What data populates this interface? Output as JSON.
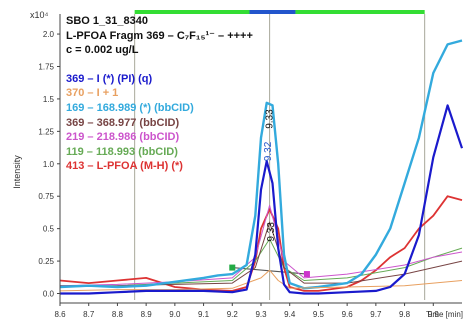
{
  "chart_data": {
    "type": "line",
    "header": [
      "SBO 1_31_8340",
      "L-PFOA Fragm 369 – C₇F₁₅¹⁻ – ++++",
      "c = 0.002 ug/L"
    ],
    "y_exponent": "x10⁴",
    "ylabel": "Intensity",
    "xlabel": "Time [min]",
    "xlim": [
      8.6,
      10.0
    ],
    "ylim": [
      -0.05,
      2.17
    ],
    "x_ticks": [
      "8.6",
      "8.7",
      "8.8",
      "8.9",
      "9.0",
      "9.1",
      "9.2",
      "9.3",
      "9.4",
      "9.5",
      "9.6",
      "9.7",
      "9.8",
      "9.9",
      "Time [min]"
    ],
    "y_ticks": [
      "0.0",
      "0.25",
      "0.5",
      "0.75",
      "1.0",
      "1.25",
      "1.5",
      "1.75",
      "2.0"
    ],
    "y_tick_values": [
      0,
      0.25,
      0.5,
      0.75,
      1.0,
      1.25,
      1.5,
      1.75,
      2.0
    ],
    "vertical_lines": [
      8.86,
      9.33,
      9.87
    ],
    "time_bar": [
      {
        "from": 8.86,
        "to": 9.26,
        "color": "#33dd33"
      },
      {
        "from": 9.26,
        "to": 9.42,
        "color": "#2255cc"
      },
      {
        "from": 9.42,
        "to": 9.87,
        "color": "#33dd33"
      }
    ],
    "peak_labels": [
      {
        "text": "9.33",
        "x": 9.33,
        "y": 1.27,
        "color": "#111111"
      },
      {
        "text": "9.32",
        "x": 9.325,
        "y": 1.02,
        "color": "#2255cc"
      },
      {
        "text": "9.33",
        "x": 9.335,
        "y": 0.4,
        "color": "#111111"
      }
    ],
    "integration_baseline": {
      "x": [
        9.2,
        9.46
      ],
      "y": [
        0.2,
        0.15
      ]
    },
    "series": [
      {
        "name": "369 – I (*) (PI) (q)",
        "color": "#1a1acc",
        "width": 2.2,
        "x": [
          8.6,
          8.7,
          8.8,
          8.9,
          9.0,
          9.1,
          9.2,
          9.25,
          9.28,
          9.3,
          9.32,
          9.34,
          9.36,
          9.38,
          9.4,
          9.45,
          9.5,
          9.6,
          9.7,
          9.75,
          9.8,
          9.85,
          9.9,
          9.95,
          10.0
        ],
        "y": [
          0.0,
          0.0,
          0.01,
          0.02,
          0.02,
          0.02,
          0.01,
          0.03,
          0.3,
          0.8,
          1.02,
          0.85,
          0.35,
          0.07,
          0.01,
          0.0,
          0.0,
          0.01,
          0.02,
          0.05,
          0.15,
          0.45,
          1.05,
          1.45,
          1.12
        ]
      },
      {
        "name": "370 – I + 1",
        "color": "#e8a060",
        "width": 1.0,
        "x": [
          8.6,
          8.8,
          9.0,
          9.2,
          9.3,
          9.33,
          9.36,
          9.4,
          9.6,
          9.8,
          10.0
        ],
        "y": [
          0.02,
          0.03,
          0.03,
          0.04,
          0.12,
          0.18,
          0.1,
          0.04,
          0.05,
          0.06,
          0.1
        ]
      },
      {
        "name": "169 – 168.989 (*) (bbCID)",
        "color": "#33aadd",
        "width": 2.4,
        "x": [
          8.6,
          8.7,
          8.8,
          8.9,
          9.0,
          9.1,
          9.15,
          9.2,
          9.25,
          9.28,
          9.3,
          9.32,
          9.34,
          9.36,
          9.38,
          9.4,
          9.45,
          9.5,
          9.6,
          9.65,
          9.7,
          9.75,
          9.8,
          9.85,
          9.9,
          9.95,
          10.0
        ],
        "y": [
          0.05,
          0.06,
          0.05,
          0.06,
          0.09,
          0.12,
          0.14,
          0.15,
          0.22,
          0.6,
          1.2,
          1.47,
          1.45,
          1.0,
          0.3,
          0.08,
          0.04,
          0.05,
          0.08,
          0.15,
          0.3,
          0.5,
          0.85,
          1.2,
          1.7,
          1.92,
          1.95
        ]
      },
      {
        "name": "369 – 368.977 (bbCID)",
        "color": "#774444",
        "width": 1.0,
        "x": [
          8.6,
          8.8,
          9.0,
          9.2,
          9.28,
          9.33,
          9.38,
          9.45,
          9.6,
          9.8,
          9.9,
          10.0
        ],
        "y": [
          0.06,
          0.06,
          0.07,
          0.08,
          0.2,
          0.55,
          0.2,
          0.08,
          0.08,
          0.15,
          0.2,
          0.25
        ]
      },
      {
        "name": "219 – 218.986 (bbCID)",
        "color": "#cc55cc",
        "width": 1.0,
        "x": [
          8.6,
          8.8,
          9.0,
          9.2,
          9.28,
          9.33,
          9.38,
          9.45,
          9.6,
          9.8,
          9.9,
          10.0
        ],
        "y": [
          0.06,
          0.07,
          0.09,
          0.12,
          0.28,
          0.68,
          0.25,
          0.12,
          0.15,
          0.22,
          0.28,
          0.32
        ]
      },
      {
        "name": "119 – 118.993 (bbCID)",
        "color": "#66aa55",
        "width": 1.0,
        "x": [
          8.6,
          8.8,
          9.0,
          9.2,
          9.28,
          9.33,
          9.38,
          9.45,
          9.6,
          9.8,
          9.9,
          10.0
        ],
        "y": [
          0.05,
          0.06,
          0.08,
          0.1,
          0.25,
          0.42,
          0.2,
          0.1,
          0.12,
          0.2,
          0.28,
          0.35
        ]
      },
      {
        "name": "413 – L-PFOA (M-H) (*)",
        "color": "#dd3333",
        "width": 1.8,
        "x": [
          8.6,
          8.7,
          8.8,
          8.9,
          9.0,
          9.1,
          9.2,
          9.25,
          9.28,
          9.3,
          9.33,
          9.36,
          9.38,
          9.4,
          9.45,
          9.5,
          9.6,
          9.65,
          9.7,
          9.75,
          9.8,
          9.85,
          9.9,
          9.95,
          10.0
        ],
        "y": [
          0.1,
          0.08,
          0.1,
          0.12,
          0.05,
          0.03,
          0.02,
          0.05,
          0.25,
          0.5,
          0.65,
          0.5,
          0.2,
          0.05,
          0.02,
          0.02,
          0.05,
          0.1,
          0.18,
          0.28,
          0.35,
          0.5,
          0.6,
          0.75,
          0.72
        ]
      }
    ]
  }
}
